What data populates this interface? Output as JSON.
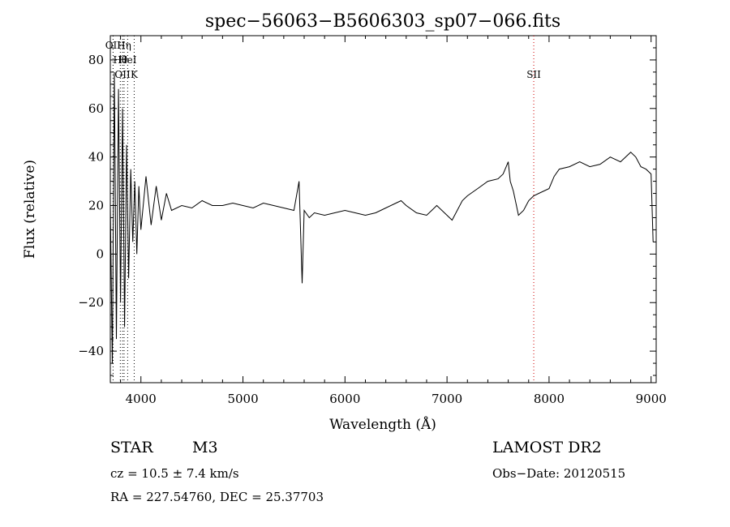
{
  "chart_data": {
    "type": "line",
    "title": "spec−56063−B5606303_sp07−066.fits",
    "xlabel": "Wavelength (Å)",
    "ylabel": "Flux (relative)",
    "xlim": [
      3700,
      9050
    ],
    "ylim": [
      -53,
      90
    ],
    "xticks": [
      4000,
      5000,
      6000,
      7000,
      8000,
      9000
    ],
    "xtick_labels": [
      "4000",
      "5000",
      "6000",
      "7000",
      "8000",
      "9000"
    ],
    "yticks": [
      -40,
      -20,
      0,
      20,
      40,
      60,
      80
    ],
    "ytick_labels": [
      "−40",
      "−20",
      "0",
      "20",
      "40",
      "60",
      "80"
    ],
    "grid": false,
    "line_color": "#000000",
    "series": [
      {
        "x": [
          3700,
          3720,
          3740,
          3760,
          3780,
          3800,
          3820,
          3840,
          3860,
          3880,
          3900,
          3920,
          3940,
          3960,
          3980,
          4000,
          4050,
          4100,
          4150,
          4200,
          4250,
          4300,
          4400,
          4500,
          4600,
          4700,
          4800,
          4900,
          5000,
          5100,
          5200,
          5300,
          5400,
          5500,
          5550,
          5580,
          5600,
          5650,
          5700,
          5800,
          5900,
          6000,
          6100,
          6200,
          6300,
          6400,
          6500,
          6550,
          6600,
          6700,
          6800,
          6850,
          6900,
          7000,
          7050,
          7100,
          7150,
          7200,
          7300,
          7400,
          7500,
          7550,
          7600,
          7620,
          7650,
          7680,
          7700,
          7750,
          7800,
          7850,
          7900,
          8000,
          8050,
          8100,
          8200,
          8300,
          8400,
          8500,
          8600,
          8700,
          8800,
          8850,
          8900,
          8950,
          9000,
          9020
        ],
        "y": [
          20,
          -45,
          75,
          -35,
          68,
          -20,
          60,
          -30,
          45,
          -10,
          35,
          5,
          30,
          0,
          28,
          10,
          32,
          12,
          28,
          14,
          25,
          18,
          20,
          19,
          22,
          20,
          20,
          21,
          20,
          19,
          21,
          20,
          19,
          18,
          30,
          -12,
          18,
          15,
          17,
          16,
          17,
          18,
          17,
          16,
          17,
          19,
          21,
          22,
          20,
          17,
          16,
          18,
          20,
          16,
          14,
          18,
          22,
          24,
          27,
          30,
          31,
          33,
          38,
          30,
          26,
          20,
          16,
          18,
          22,
          24,
          25,
          27,
          32,
          35,
          36,
          38,
          36,
          37,
          40,
          38,
          42,
          40,
          36,
          35,
          33,
          5
        ]
      }
    ],
    "line_markers": [
      {
        "label": "OII",
        "x": 3727,
        "color": "#000000"
      },
      {
        "label": "Hθ",
        "x": 3798,
        "color": "#000000"
      },
      {
        "label": "OII",
        "x": 3820,
        "color": "#000000"
      },
      {
        "label": "Hη",
        "x": 3835,
        "color": "#000000"
      },
      {
        "label": "HeI",
        "x": 3870,
        "color": "#000000"
      },
      {
        "label": "K",
        "x": 3934,
        "color": "#000000"
      },
      {
        "label": "SII",
        "x": 7850,
        "color": "#cc0000"
      }
    ]
  },
  "info": {
    "class": "STAR",
    "subclass": "M3",
    "survey": "LAMOST DR2",
    "cz": "cz = 10.5 ± 7.4 km/s",
    "obs_date": "Obs−Date: 20120515",
    "coords": "RA = 227.54760, DEC =  25.37703"
  }
}
